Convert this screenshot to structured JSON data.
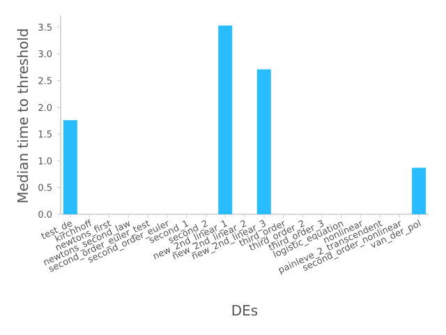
{
  "chart_data": {
    "type": "bar",
    "xlabel": "DEs",
    "ylabel": "Median time to threshold",
    "ylim": [
      0,
      3.72
    ],
    "yticks": [
      "0.0",
      "0.5",
      "1.0",
      "1.5",
      "2.0",
      "2.5",
      "3.0",
      "3.5"
    ],
    "grid": false,
    "bar_color": "#29bdff",
    "axis_color": "#cccccc",
    "text_color": "#555555",
    "categories": [
      "test_de",
      "kirchhoff",
      "newtons_first",
      "newtons_second_law",
      "second_order_euler_test",
      "second_order_euler",
      "second_1",
      "second_2",
      "new_2nd_linear_1",
      "new_2nd_linear_2",
      "new_2nd_linear_3",
      "third_order",
      "third_order_2",
      "third_order_3",
      "logistic_equation",
      "nonlinear",
      "painleve_2_transcendent",
      "second_order_nonlinear",
      "van_der_pol"
    ],
    "values": [
      1.76,
      0,
      0,
      0,
      0,
      0,
      0,
      0,
      3.53,
      0,
      2.71,
      0,
      0,
      0,
      0,
      0,
      0,
      0,
      0.87
    ]
  }
}
